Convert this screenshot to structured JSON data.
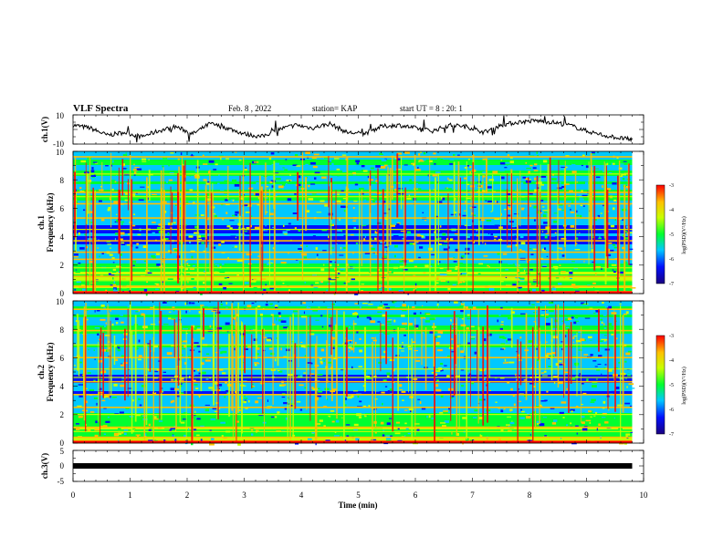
{
  "header": {
    "title": "VLF Spectra",
    "date": "Feb. 8 , 2022",
    "station": "station= KAP",
    "start_ut": "start UT = 8 : 20: 1"
  },
  "colors": {
    "waveform": "#000000",
    "colormap": [
      "#1a0080",
      "#0010ff",
      "#00c8ff",
      "#00ff30",
      "#c8ff00",
      "#ffc000",
      "#ff0000"
    ]
  },
  "chart_data": [
    {
      "type": "line",
      "panel": "ch1-waveform",
      "ylabel": "ch.1(V)",
      "ylim": [
        -10,
        10
      ],
      "yticks": [
        "10",
        "-10"
      ],
      "xlim": [
        0,
        10
      ],
      "series": [
        {
          "x": [
            0,
            0.3,
            0.6,
            0.9,
            1.2,
            1.5,
            1.8,
            2.1,
            2.4,
            2.7,
            3.0,
            3.3,
            3.6,
            3.9,
            4.2,
            4.5,
            4.8,
            5.1,
            5.4,
            5.7,
            6.0,
            6.3,
            6.6,
            6.9,
            7.2,
            7.5,
            7.8,
            8.1,
            8.4,
            8.7,
            9.0,
            9.3,
            9.6,
            9.8
          ],
          "values": [
            3,
            1,
            -4,
            -2,
            -5,
            -1,
            2,
            -3,
            4,
            1,
            -3,
            -5,
            0,
            3,
            1,
            4,
            -2,
            -3,
            2,
            3,
            1,
            -1,
            3,
            2,
            -2,
            3,
            5,
            6,
            5,
            3,
            -1,
            -4,
            -6,
            -7
          ]
        }
      ]
    },
    {
      "type": "heatmap",
      "panel": "ch1-spectrogram",
      "ylabel": "ch.1\nFrequency (kHz)",
      "ylabel_lines": [
        "ch.1",
        "Frequency (kHz)"
      ],
      "ylim": [
        0,
        10
      ],
      "yticks": [
        "0",
        "2",
        "4",
        "6",
        "8",
        "10"
      ],
      "xlim": [
        0,
        10
      ],
      "colorbar": {
        "label": "log(PSD)(V²/Hz)",
        "range": [
          -7,
          -3
        ],
        "ticks": [
          "-3",
          "-4",
          "-5",
          "-6",
          "-7"
        ]
      }
    },
    {
      "type": "heatmap",
      "panel": "ch2-spectrogram",
      "ylabel": "ch.2\nFrequency (kHz)",
      "ylabel_lines": [
        "ch.2",
        "Frequency (kHz)"
      ],
      "ylim": [
        0,
        10
      ],
      "yticks": [
        "0",
        "2",
        "4",
        "6",
        "8",
        "10"
      ],
      "xlim": [
        0,
        10
      ],
      "colorbar": {
        "label": "log(PSD)(V²/Hz)",
        "range": [
          -7,
          -3
        ],
        "ticks": [
          "-3",
          "-4",
          "-5",
          "-6",
          "-7"
        ]
      }
    },
    {
      "type": "line",
      "panel": "ch3-waveform",
      "ylabel": "ch.3(V)",
      "ylim": [
        -5,
        5
      ],
      "yticks": [
        "5",
        "0",
        "-5"
      ],
      "xlim": [
        0,
        10
      ],
      "xlabel": "Time (min)",
      "xticks": [
        "0",
        "1",
        "2",
        "3",
        "4",
        "5",
        "6",
        "7",
        "8",
        "9",
        "10"
      ],
      "series": [
        {
          "x": [
            0,
            9.8
          ],
          "values": [
            0,
            0
          ]
        }
      ]
    }
  ]
}
